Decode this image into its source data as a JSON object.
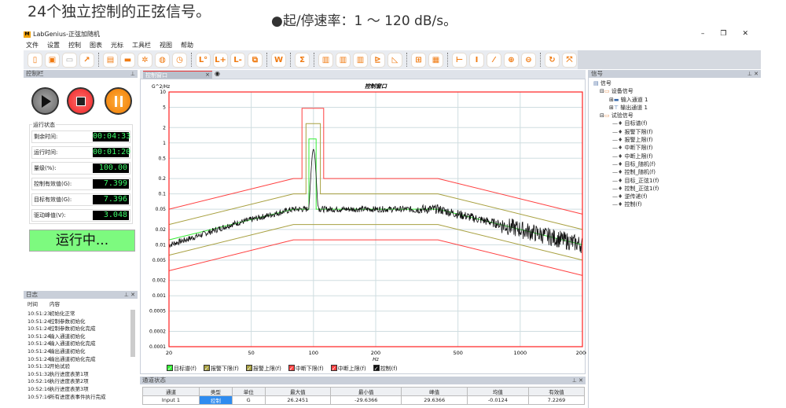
{
  "intro": {
    "line1": "24个独立控制的正弦信号。",
    "line2": "●起/停速率：1 ～ 120 dB/s。"
  },
  "window": {
    "title": "LabGenius-正弦加随机",
    "logo": "M",
    "minimize": "–",
    "restore": "❐",
    "close": "✕"
  },
  "menu": [
    "文件",
    "设置",
    "控制",
    "图表",
    "光标",
    "工具栏",
    "视图",
    "帮助"
  ],
  "toolbar": [
    {
      "icon": "new-icon",
      "g": "▯"
    },
    {
      "icon": "save-icon",
      "g": "▣"
    },
    {
      "icon": "open-icon",
      "g": "▭",
      "disabled": true
    },
    {
      "icon": "export-icon",
      "g": "↗"
    },
    {
      "sep": true
    },
    {
      "icon": "print-icon",
      "g": "▤"
    },
    {
      "icon": "fit-icon",
      "g": "▬"
    },
    {
      "icon": "settings-icon",
      "g": "✲"
    },
    {
      "icon": "palette-icon",
      "g": "◍"
    },
    {
      "icon": "clock-icon",
      "g": "◷"
    },
    {
      "sep": true
    },
    {
      "icon": "limit-icon",
      "g": "L°"
    },
    {
      "icon": "limit-add-icon",
      "g": "L+"
    },
    {
      "icon": "limit-remove-icon",
      "g": "L-"
    },
    {
      "icon": "copy-icon",
      "g": "⧉"
    },
    {
      "sep": true
    },
    {
      "icon": "weight-icon",
      "g": "W"
    },
    {
      "sep": true
    },
    {
      "icon": "sum-icon",
      "g": "Σ"
    },
    {
      "sep": true
    },
    {
      "icon": "bars1-icon",
      "g": "▥"
    },
    {
      "icon": "bars2-icon",
      "g": "▥"
    },
    {
      "icon": "bars3-icon",
      "g": "▥"
    },
    {
      "icon": "stair-icon",
      "g": "⊵"
    },
    {
      "icon": "chart-icon",
      "g": "◺"
    },
    {
      "sep": true
    },
    {
      "icon": "split-icon",
      "g": "⊞"
    },
    {
      "icon": "grid-icon",
      "g": "▦"
    },
    {
      "sep": true
    },
    {
      "icon": "h-cursor-icon",
      "g": "⊢"
    },
    {
      "icon": "v-cursor-icon",
      "g": "I"
    },
    {
      "icon": "diag-cursor-icon",
      "g": "⁄"
    },
    {
      "icon": "zoom-in-icon",
      "g": "⊕"
    },
    {
      "icon": "zoom-out-icon",
      "g": "⊖"
    },
    {
      "sep": true
    },
    {
      "icon": "refresh-icon",
      "g": "↻"
    },
    {
      "icon": "fullscreen-icon",
      "g": "⤧"
    }
  ],
  "control_panel": {
    "title": "控制栏",
    "status_title": "运行状态",
    "rows": [
      {
        "label": "剩余时间:",
        "value": "00:04:33"
      },
      {
        "label": "运行时间:",
        "value": "00:01:20"
      },
      {
        "label": "量级(%):",
        "value": "100.00"
      },
      {
        "label": "控制有效值(G):",
        "value": "7.399"
      },
      {
        "label": "目标有效值(G):",
        "value": "7.396"
      },
      {
        "label": "驱动峰值(V):",
        "value": "3.048"
      }
    ],
    "running": "运行中..."
  },
  "log": {
    "title": "日志",
    "col_time": "时间",
    "col_content": "内容",
    "rows": [
      [
        "10:51:23",
        "初始化正常"
      ],
      [
        "10:51:24",
        "控制参数初始化"
      ],
      [
        "10:51:24",
        "控制参数初始化完成"
      ],
      [
        "10:51:24",
        "输入通道初始化"
      ],
      [
        "10:51:24",
        "输入通道初始化完成"
      ],
      [
        "10:51:24",
        "输出通道初始化"
      ],
      [
        "10:51:24",
        "输出通道初始化完成"
      ],
      [
        "10:51:32",
        "开始试验"
      ],
      [
        "10:51:32",
        "执行进度表第1项"
      ],
      [
        "10:52:16",
        "执行进度表第2项"
      ],
      [
        "10:52:16",
        "执行进度表第3项"
      ],
      [
        "10:57:16",
        "所有进度表事件执行完成"
      ]
    ]
  },
  "tab": {
    "label": "控制窗口",
    "close": "×"
  },
  "signals": {
    "title": "信号",
    "root": "信号",
    "device": "设备信号",
    "inputs": "输入通道 1",
    "outputs": "输出通道 1",
    "test": "试验信号",
    "items": [
      "目标谱(f)",
      "报警下限(f)",
      "报警上限(f)",
      "中断下限(f)",
      "中断上限(f)",
      "目标_随机(f)",
      "控制_随机(f)",
      "目标_正弦1(f)",
      "控制_正弦1(f)",
      "逆传递(f)",
      "控制(f)"
    ]
  },
  "channel_status": {
    "title": "通道状态",
    "headers": [
      "通道",
      "类型",
      "单位",
      "最大值",
      "最小值",
      "峰值",
      "均值",
      "有效值"
    ],
    "rows": [
      [
        "Input 1",
        "控制",
        "G",
        "26.2451",
        "-29.6366",
        "29.6366",
        "-0.0124",
        "7.2269"
      ]
    ]
  },
  "chart_data": {
    "type": "line",
    "title": "控制窗口",
    "xlabel": "Hz",
    "ylabel": "G^2/Hz",
    "xscale": "log",
    "yscale": "log",
    "xlim": [
      20,
      2000
    ],
    "ylim": [
      0.0001,
      10
    ],
    "xticks": [
      20,
      50,
      100,
      200,
      500,
      1000,
      2000
    ],
    "yticks": [
      10,
      5,
      2,
      1,
      0.5,
      0.2,
      0.1,
      0.05,
      0.02,
      0.01,
      0.005,
      0.002,
      0.001,
      0.0005,
      0.0002,
      0.0001
    ],
    "grid": true,
    "legend": "bottom",
    "series": [
      {
        "name": "目标谱(f)",
        "color": "#33ee33",
        "points": [
          [
            20,
            0.0125
          ],
          [
            80,
            0.05
          ],
          [
            95,
            0.05
          ],
          [
            95,
            1.2
          ],
          [
            103,
            1.2
          ],
          [
            103,
            0.05
          ],
          [
            400,
            0.05
          ],
          [
            2000,
            0.01
          ]
        ]
      },
      {
        "name": "报警下限(f)",
        "color": "#a8a040",
        "points": [
          [
            20,
            0.00625
          ],
          [
            80,
            0.025
          ],
          [
            400,
            0.025
          ],
          [
            2000,
            0.005
          ]
        ]
      },
      {
        "name": "报警上限(f)",
        "color": "#a8a040",
        "points": [
          [
            20,
            0.025
          ],
          [
            80,
            0.1
          ],
          [
            92,
            0.1
          ],
          [
            92,
            2.4
          ],
          [
            108,
            2.4
          ],
          [
            108,
            0.1
          ],
          [
            400,
            0.1
          ],
          [
            2000,
            0.02
          ]
        ]
      },
      {
        "name": "中断下限(f)",
        "color": "#ff4040",
        "points": [
          [
            20,
            0.0031
          ],
          [
            80,
            0.0125
          ],
          [
            400,
            0.0125
          ],
          [
            2000,
            0.0025
          ]
        ]
      },
      {
        "name": "中断上限(f)",
        "color": "#ff4040",
        "points": [
          [
            20,
            0.05
          ],
          [
            80,
            0.2
          ],
          [
            88,
            0.2
          ],
          [
            88,
            4.8
          ],
          [
            112,
            4.8
          ],
          [
            112,
            0.2
          ],
          [
            400,
            0.2
          ],
          [
            2000,
            0.04
          ]
        ]
      },
      {
        "name": "控制(f)",
        "color": "#111111",
        "peak": [
          100,
          0.7
        ],
        "follows": "目标谱(f)"
      }
    ]
  }
}
